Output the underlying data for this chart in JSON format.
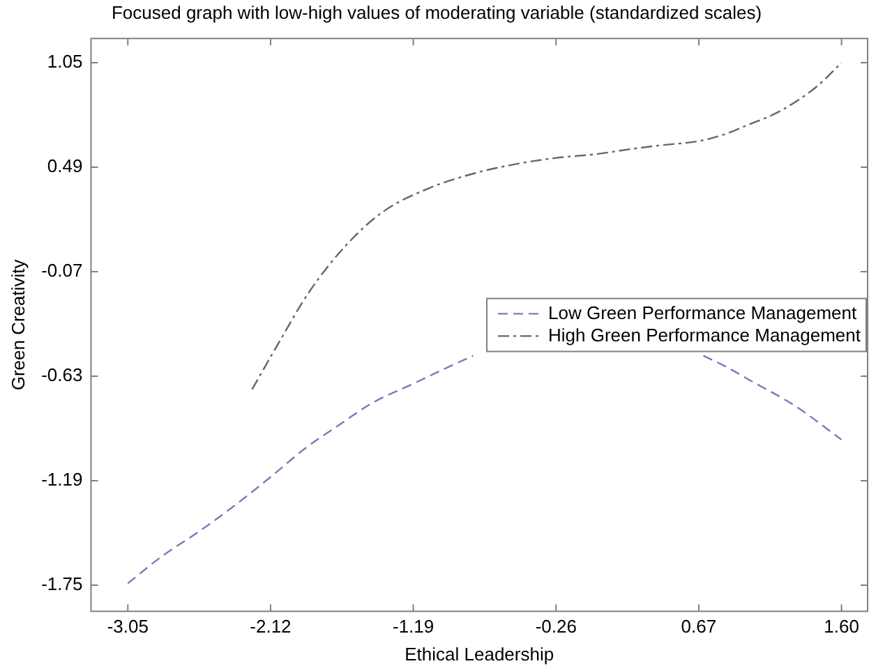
{
  "chart_data": {
    "type": "line",
    "title": "Focused graph with low-high values of moderating variable (standardized scales)",
    "xlabel": "Ethical Leadership",
    "ylabel": "Green Creativity",
    "xlim": [
      -3.29,
      1.77
    ],
    "xticks": [
      -3.05,
      -2.12,
      -1.19,
      -0.26,
      0.67,
      {
        "value": 1.6,
        "label": "1.60"
      }
    ],
    "ylim": [
      -1.89,
      1.18
    ],
    "yticks": [
      -1.75,
      -1.19,
      -0.63,
      -0.07,
      0.49,
      1.05
    ],
    "grid": false,
    "legend": "right",
    "marker": "none",
    "series": [
      {
        "name": "Low Green Performance Management",
        "color": "#7a7ab8",
        "line_style": "dashed",
        "x": [
          -3.05,
          -2.82,
          -2.6,
          -2.35,
          -2.12,
          -1.9,
          -1.69,
          -1.45,
          -1.19,
          -0.96,
          -0.8,
          -0.2,
          0.7,
          0.85,
          1.0,
          1.3,
          1.6
        ],
        "values": [
          -1.74,
          -1.59,
          -1.47,
          -1.32,
          -1.17,
          -1.02,
          -0.9,
          -0.77,
          -0.67,
          -0.58,
          -0.52,
          null,
          -0.52,
          -0.58,
          -0.65,
          -0.79,
          -0.97
        ]
      },
      {
        "name": "High Green Performance Management",
        "color": "#666666",
        "line_style": "dotted",
        "x": [
          -2.24,
          -2.08,
          -1.87,
          -1.63,
          -1.39,
          -1.08,
          -0.78,
          -0.5,
          -0.26,
          0.0,
          0.25,
          0.45,
          0.67,
          0.85,
          1.0,
          1.15,
          1.3,
          1.45,
          1.6
        ],
        "values": [
          -0.7,
          -0.47,
          -0.18,
          0.07,
          0.25,
          0.38,
          0.46,
          0.51,
          0.54,
          0.56,
          0.59,
          0.61,
          0.63,
          0.67,
          0.72,
          0.77,
          0.84,
          0.93,
          1.05
        ]
      }
    ]
  }
}
